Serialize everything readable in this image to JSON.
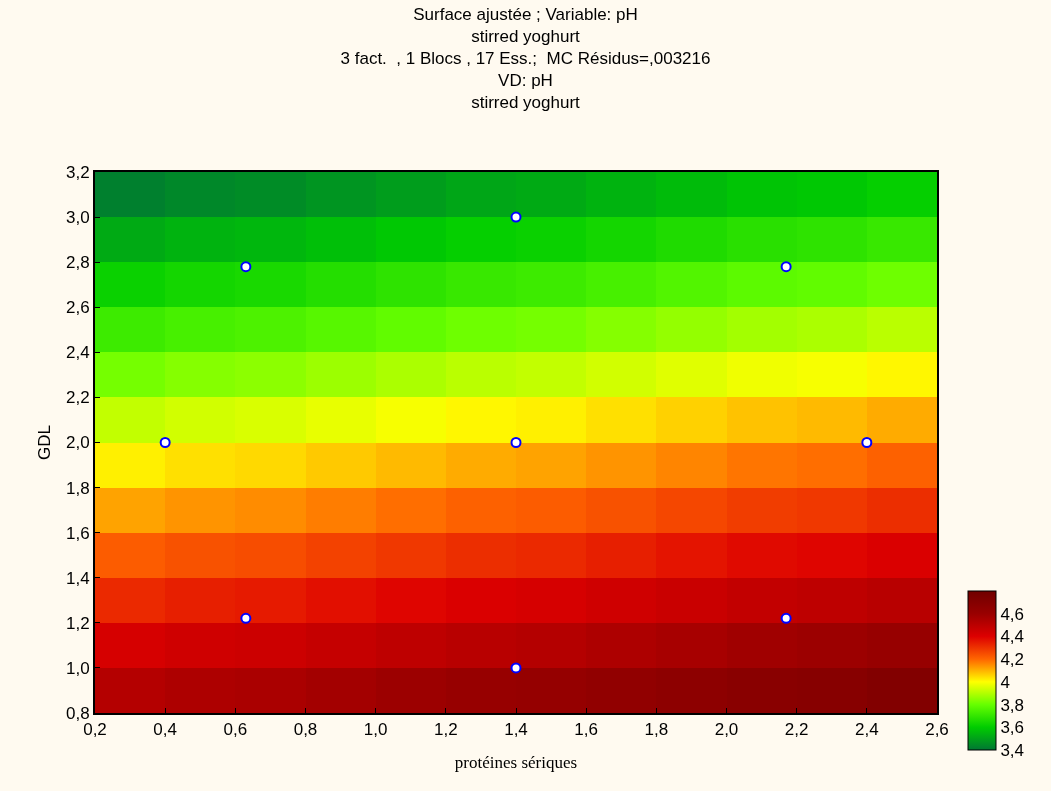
{
  "chart_data": {
    "type": "heatmap",
    "title": "Surface ajustée ; Variable: pH\nstirred yoghurt\n3 fact.  , 1 Blocs , 17 Ess.;  MC Résidus=,003216\nVD: pH\nstirred yoghurt",
    "xlabel": "protéines sériques",
    "ylabel": "GDL",
    "x": [
      0.3,
      0.5,
      0.7,
      0.9,
      1.1,
      1.3,
      1.5,
      1.7,
      1.9,
      2.1,
      2.3,
      2.5
    ],
    "y": [
      3.1,
      2.9,
      2.7,
      2.5,
      2.3,
      2.1,
      1.9,
      1.7,
      1.5,
      1.3,
      1.1,
      0.9
    ],
    "cells": [
      [
        3.42,
        3.44,
        3.45,
        3.47,
        3.49,
        3.51,
        3.52,
        3.54,
        3.56,
        3.58,
        3.59,
        3.61
      ],
      [
        3.52,
        3.54,
        3.55,
        3.57,
        3.59,
        3.61,
        3.62,
        3.64,
        3.66,
        3.68,
        3.69,
        3.71
      ],
      [
        3.62,
        3.64,
        3.65,
        3.67,
        3.69,
        3.71,
        3.72,
        3.74,
        3.76,
        3.78,
        3.79,
        3.81
      ],
      [
        3.72,
        3.74,
        3.75,
        3.77,
        3.79,
        3.81,
        3.82,
        3.84,
        3.86,
        3.88,
        3.89,
        3.91
      ],
      [
        3.82,
        3.84,
        3.85,
        3.87,
        3.89,
        3.91,
        3.92,
        3.94,
        3.96,
        3.98,
        3.99,
        4.01
      ],
      [
        3.92,
        3.94,
        3.95,
        3.97,
        3.99,
        4.01,
        4.02,
        4.04,
        4.06,
        4.08,
        4.09,
        4.11
      ],
      [
        4.02,
        4.04,
        4.05,
        4.07,
        4.09,
        4.11,
        4.12,
        4.14,
        4.16,
        4.18,
        4.19,
        4.21
      ],
      [
        4.12,
        4.14,
        4.15,
        4.17,
        4.19,
        4.21,
        4.22,
        4.24,
        4.26,
        4.28,
        4.29,
        4.31
      ],
      [
        4.22,
        4.24,
        4.25,
        4.27,
        4.29,
        4.31,
        4.32,
        4.34,
        4.36,
        4.38,
        4.39,
        4.41
      ],
      [
        4.32,
        4.34,
        4.35,
        4.37,
        4.39,
        4.41,
        4.42,
        4.44,
        4.46,
        4.48,
        4.49,
        4.51
      ],
      [
        4.42,
        4.44,
        4.45,
        4.47,
        4.49,
        4.51,
        4.52,
        4.54,
        4.56,
        4.58,
        4.59,
        4.61
      ],
      [
        4.52,
        4.54,
        4.55,
        4.57,
        4.59,
        4.61,
        4.62,
        4.64,
        4.66,
        4.68,
        4.69,
        4.71
      ]
    ],
    "clim": [
      3.4,
      4.8
    ],
    "cticks": [
      {
        "value": 3.4,
        "label": "3,4"
      },
      {
        "value": 3.6,
        "label": "3,6"
      },
      {
        "value": 3.8,
        "label": "3,8"
      },
      {
        "value": 4,
        "label": "4"
      },
      {
        "value": 4.2,
        "label": "4,2"
      },
      {
        "value": 4.4,
        "label": "4,4"
      },
      {
        "value": 4.6,
        "label": "4,6"
      }
    ],
    "colors": [
      "#007733",
      "#00cc00",
      "#66ff00",
      "#ffff00",
      "#ff6600",
      "#dd0000",
      "#990000",
      "#700000"
    ],
    "xlim": [
      0.2,
      2.6
    ],
    "xticks": [
      {
        "value": 0.2,
        "label": "0,2"
      },
      {
        "value": 0.4,
        "label": "0,4"
      },
      {
        "value": 0.6,
        "label": "0,6"
      },
      {
        "value": 0.8,
        "label": "0,8"
      },
      {
        "value": 1.0,
        "label": "1,0"
      },
      {
        "value": 1.2,
        "label": "1,2"
      },
      {
        "value": 1.4,
        "label": "1,4"
      },
      {
        "value": 1.6,
        "label": "1,6"
      },
      {
        "value": 1.8,
        "label": "1,8"
      },
      {
        "value": 2.0,
        "label": "2,0"
      },
      {
        "value": 2.2,
        "label": "2,2"
      },
      {
        "value": 2.4,
        "label": "2,4"
      },
      {
        "value": 2.6,
        "label": "2,6"
      }
    ],
    "ylim": [
      0.8,
      3.2
    ],
    "yticks": [
      {
        "value": 0.8,
        "label": "0,8"
      },
      {
        "value": 1.0,
        "label": "1,0"
      },
      {
        "value": 1.2,
        "label": "1,2"
      },
      {
        "value": 1.4,
        "label": "1,4"
      },
      {
        "value": 1.6,
        "label": "1,6"
      },
      {
        "value": 1.8,
        "label": "1,8"
      },
      {
        "value": 2.0,
        "label": "2,0"
      },
      {
        "value": 2.2,
        "label": "2,2"
      },
      {
        "value": 2.4,
        "label": "2,4"
      },
      {
        "value": 2.6,
        "label": "2,6"
      },
      {
        "value": 2.8,
        "label": "2,8"
      },
      {
        "value": 3.0,
        "label": "3,0"
      },
      {
        "value": 3.2,
        "label": "3,2"
      }
    ],
    "series": [
      {
        "type": "scatter",
        "color": "#ffffff",
        "x": [
          0.4,
          1.4,
          2.4,
          1.4,
          1.4,
          0.63,
          0.63,
          2.17,
          2.17
        ],
        "values": [
          2.0,
          2.0,
          2.0,
          1.0,
          3.0,
          1.22,
          2.78,
          1.22,
          2.78
        ]
      }
    ],
    "marker": "circle"
  }
}
